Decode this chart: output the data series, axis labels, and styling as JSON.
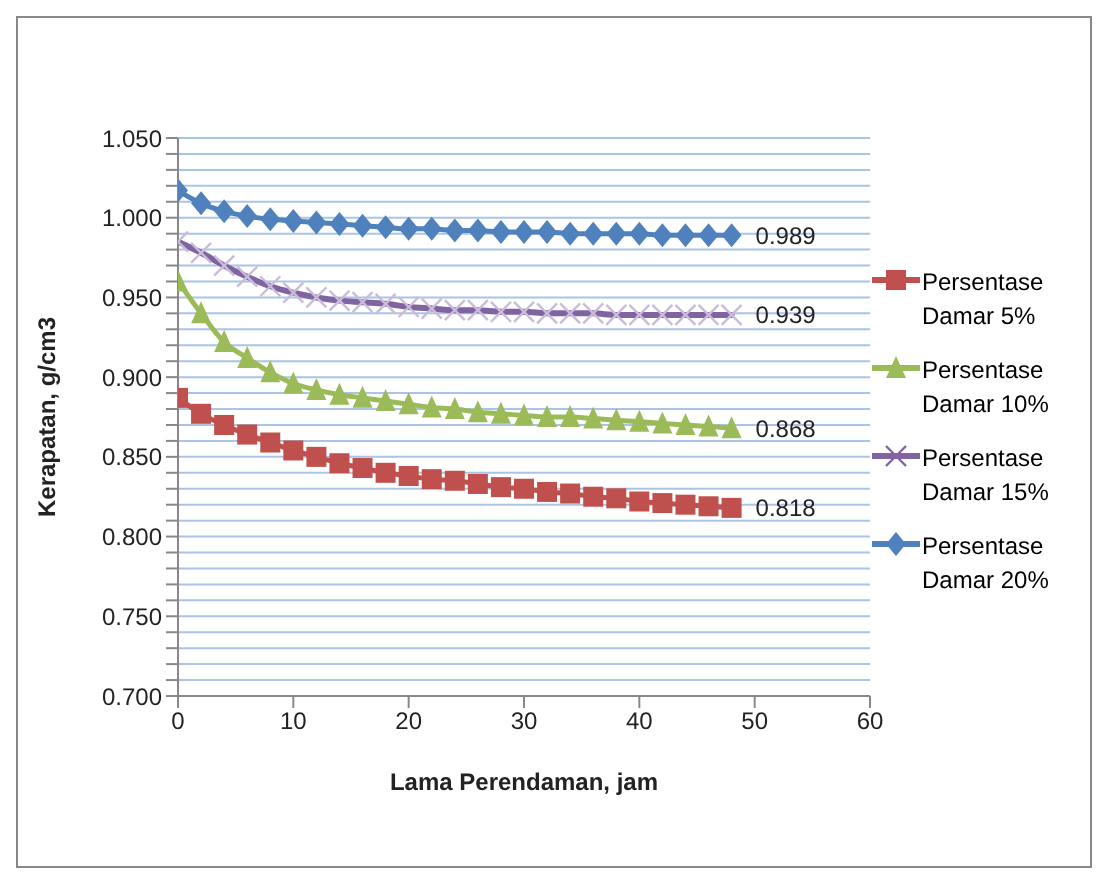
{
  "chart_data": {
    "type": "line",
    "xlabel": "Lama Perendaman, jam",
    "ylabel": "Kerapatan, g/cm3",
    "x": [
      0,
      2,
      4,
      6,
      8,
      10,
      12,
      14,
      16,
      18,
      20,
      22,
      24,
      26,
      28,
      30,
      32,
      34,
      36,
      38,
      40,
      42,
      44,
      46,
      48
    ],
    "xlim": [
      0,
      60
    ],
    "xticks": [
      0,
      10,
      20,
      30,
      40,
      50,
      60
    ],
    "ylim": [
      0.7,
      1.05
    ],
    "yticks": [
      "0.700",
      {
        "value": 0.71,
        "label": null
      },
      {
        "value": 0.72,
        "label": null
      },
      {
        "value": 0.73,
        "label": null
      },
      {
        "value": 0.74,
        "label": null
      },
      {
        "value": 0.75,
        "label": "0.750"
      },
      {
        "value": 0.76,
        "label": null
      },
      {
        "value": 0.77,
        "label": null
      },
      {
        "value": 0.78,
        "label": null
      },
      {
        "value": 0.79,
        "label": null
      },
      {
        "value": 0.8,
        "label": "0.800"
      },
      {
        "value": 0.81,
        "label": null
      },
      {
        "value": 0.82,
        "label": null
      },
      {
        "value": 0.83,
        "label": null
      },
      {
        "value": 0.84,
        "label": null
      },
      {
        "value": 0.85,
        "label": "0.850"
      },
      {
        "value": 0.86,
        "label": null
      },
      {
        "value": 0.87,
        "label": null
      },
      {
        "value": 0.88,
        "label": null
      },
      {
        "value": 0.89,
        "label": null
      },
      {
        "value": 0.9,
        "label": "0.900"
      },
      {
        "value": 0.91,
        "label": null
      },
      {
        "value": 0.92,
        "label": null
      },
      {
        "value": 0.93,
        "label": null
      },
      {
        "value": 0.94,
        "label": null
      },
      {
        "value": 0.95,
        "label": "0.950"
      },
      {
        "value": 0.96,
        "label": null
      },
      {
        "value": 0.97,
        "label": null
      },
      {
        "value": 0.98,
        "label": null
      },
      {
        "value": 0.99,
        "label": null
      },
      {
        "value": 1.0,
        "label": "1.000"
      },
      {
        "value": 1.01,
        "label": null
      },
      {
        "value": 1.02,
        "label": null
      },
      {
        "value": 1.03,
        "label": null
      },
      {
        "value": 1.04,
        "label": null
      },
      {
        "value": 1.05,
        "label": "1.050"
      }
    ],
    "grid": "y",
    "legend": "right",
    "series": [
      {
        "name": "Persentase Damar 5%",
        "color": "#c0504d",
        "marker": "square",
        "values": [
          0.887,
          0.877,
          0.87,
          0.864,
          0.859,
          0.854,
          0.85,
          0.846,
          0.843,
          0.84,
          0.838,
          0.836,
          0.835,
          0.833,
          0.831,
          0.83,
          0.828,
          0.827,
          0.825,
          0.824,
          0.822,
          0.821,
          0.82,
          0.819,
          0.818
        ],
        "value_labels": [
          null,
          null,
          null,
          null,
          null,
          null,
          null,
          null,
          null,
          null,
          null,
          null,
          null,
          null,
          null,
          null,
          null,
          null,
          null,
          null,
          null,
          null,
          null,
          null,
          "0.818"
        ]
      },
      {
        "name": "Persentase Damar 10%",
        "color": "#9bbb59",
        "marker": "triangle",
        "values": [
          0.96,
          0.94,
          0.922,
          0.912,
          0.903,
          0.896,
          0.892,
          0.889,
          0.887,
          0.885,
          0.883,
          0.881,
          0.88,
          0.878,
          0.877,
          0.876,
          0.875,
          0.875,
          0.874,
          0.873,
          0.872,
          0.871,
          0.87,
          0.869,
          0.868
        ],
        "value_labels": [
          null,
          null,
          null,
          null,
          null,
          null,
          null,
          null,
          null,
          null,
          null,
          null,
          null,
          null,
          null,
          null,
          null,
          null,
          null,
          null,
          null,
          null,
          null,
          null,
          "0.868"
        ]
      },
      {
        "name": "Persentase Damar 15%",
        "color": "#8064a2",
        "marker": "cross",
        "values": [
          0.985,
          0.978,
          0.97,
          0.963,
          0.957,
          0.953,
          0.95,
          0.948,
          0.947,
          0.946,
          0.944,
          0.943,
          0.942,
          0.942,
          0.941,
          0.941,
          0.94,
          0.94,
          0.94,
          0.939,
          0.939,
          0.939,
          0.939,
          0.939,
          0.939
        ],
        "value_labels": [
          null,
          null,
          null,
          null,
          null,
          null,
          null,
          null,
          null,
          null,
          null,
          null,
          null,
          null,
          null,
          null,
          null,
          null,
          null,
          null,
          null,
          null,
          null,
          null,
          "0.939"
        ]
      },
      {
        "name": "Persentase Damar 20%",
        "color": "#4f81bd",
        "marker": "diamond",
        "values": [
          1.017,
          1.009,
          1.004,
          1.001,
          0.999,
          0.998,
          0.997,
          0.996,
          0.995,
          0.994,
          0.993,
          0.993,
          0.992,
          0.992,
          0.991,
          0.991,
          0.991,
          0.99,
          0.99,
          0.99,
          0.99,
          0.989,
          0.989,
          0.989,
          0.989
        ],
        "value_labels": [
          null,
          null,
          null,
          null,
          null,
          null,
          null,
          null,
          null,
          null,
          null,
          null,
          null,
          null,
          null,
          null,
          null,
          null,
          null,
          null,
          null,
          null,
          null,
          null,
          "0.989"
        ]
      }
    ]
  }
}
